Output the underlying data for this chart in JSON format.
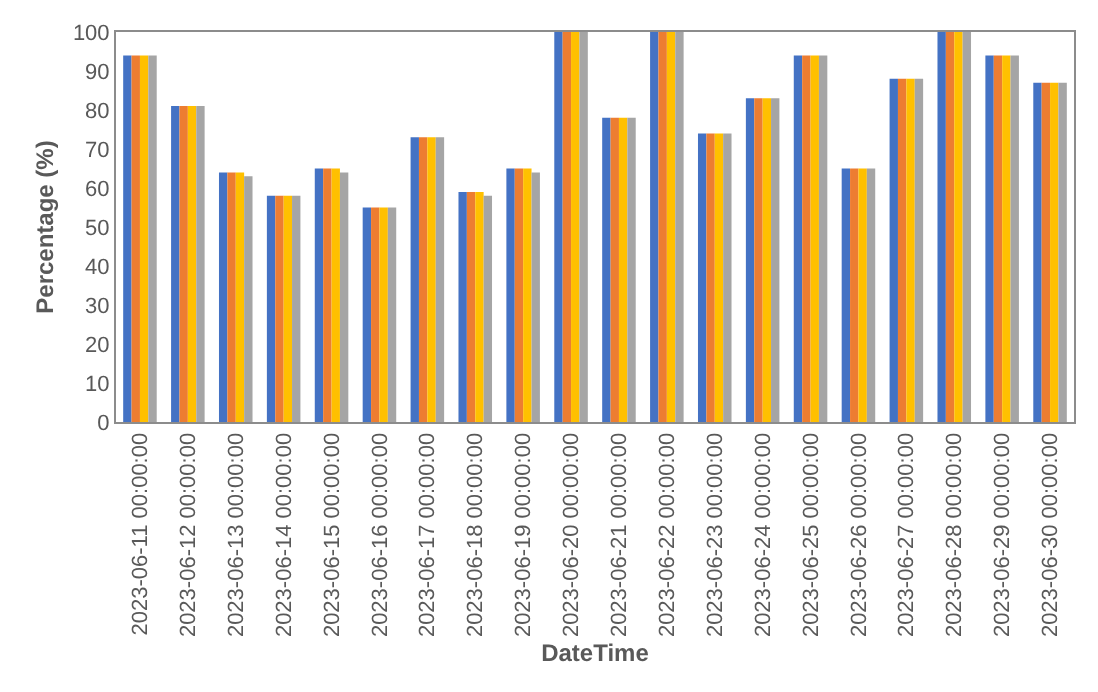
{
  "chart_data": {
    "type": "bar",
    "xlabel": "DateTime",
    "ylabel": "Percentage (%)",
    "categories": [
      "2023-06-11 00:00:00",
      "2023-06-12 00:00:00",
      "2023-06-13 00:00:00",
      "2023-06-14 00:00:00",
      "2023-06-15 00:00:00",
      "2023-06-16 00:00:00",
      "2023-06-17 00:00:00",
      "2023-06-18 00:00:00",
      "2023-06-19 00:00:00",
      "2023-06-20 00:00:00",
      "2023-06-21 00:00:00",
      "2023-06-22 00:00:00",
      "2023-06-23 00:00:00",
      "2023-06-24 00:00:00",
      "2023-06-25 00:00:00",
      "2023-06-26 00:00:00",
      "2023-06-27 00:00:00",
      "2023-06-28 00:00:00",
      "2023-06-29 00:00:00",
      "2023-06-30 00:00:00"
    ],
    "series": [
      {
        "color": "#4472c4",
        "values": [
          94,
          81,
          64,
          58,
          65,
          55,
          73,
          59,
          65,
          100,
          78,
          100,
          74,
          83,
          94,
          65,
          88,
          100,
          94,
          87
        ]
      },
      {
        "color": "#ed7d31",
        "values": [
          94,
          81,
          64,
          58,
          65,
          55,
          73,
          59,
          65,
          100,
          78,
          100,
          74,
          83,
          94,
          65,
          88,
          100,
          94,
          87
        ]
      },
      {
        "color": "#ffc000",
        "values": [
          94,
          81,
          64,
          58,
          65,
          55,
          73,
          59,
          65,
          100,
          78,
          100,
          74,
          83,
          94,
          65,
          88,
          100,
          94,
          87
        ]
      },
      {
        "color": "#a5a5a5",
        "values": [
          94,
          81,
          63,
          58,
          64,
          55,
          73,
          58,
          64,
          100,
          78,
          100,
          74,
          83,
          94,
          65,
          88,
          100,
          94,
          87
        ]
      }
    ],
    "ylim": [
      0,
      100
    ],
    "yticks": [
      0,
      10,
      20,
      30,
      40,
      50,
      60,
      70,
      80,
      90,
      100
    ],
    "grid": false
  }
}
